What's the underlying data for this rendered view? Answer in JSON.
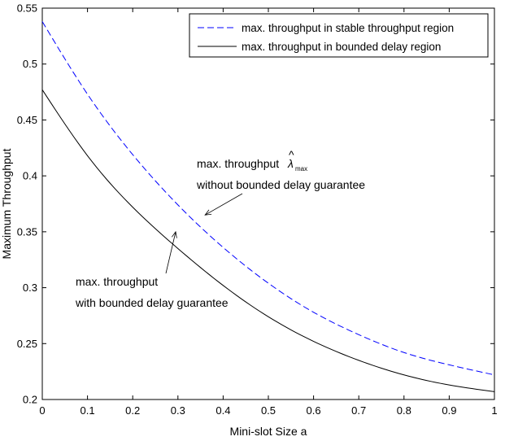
{
  "chart_data": {
    "type": "line",
    "title": "",
    "xlabel": "Mini-slot Size a",
    "ylabel": "Maximum Throughput",
    "xlim": [
      0,
      1
    ],
    "ylim": [
      0.2,
      0.55
    ],
    "xticks": [
      0,
      0.1,
      0.2,
      0.3,
      0.4,
      0.5,
      0.6,
      0.7,
      0.8,
      0.9,
      1
    ],
    "xtick_labels": [
      "0",
      "0.1",
      "0.2",
      "0.3",
      "0.4",
      "0.5",
      "0.6",
      "0.7",
      "0.8",
      "0.9",
      "1"
    ],
    "yticks": [
      0.2,
      0.25,
      0.3,
      0.35,
      0.4,
      0.45,
      0.5,
      0.55
    ],
    "ytick_labels": [
      "0.2",
      "0.25",
      "0.3",
      "0.35",
      "0.4",
      "0.45",
      "0.5",
      "0.55"
    ],
    "grid": false,
    "legend_position": "top-right",
    "x": [
      0,
      0.1,
      0.2,
      0.3,
      0.4,
      0.5,
      0.6,
      0.7,
      0.8,
      0.9,
      1.0
    ],
    "series": [
      {
        "name": "max. throughput in stable throughput region",
        "color": "#0000ff",
        "style": "dashed",
        "values": [
          0.538,
          0.473,
          0.419,
          0.374,
          0.336,
          0.304,
          0.278,
          0.258,
          0.242,
          0.231,
          0.222
        ]
      },
      {
        "name": "max. throughput in bounded delay region",
        "color": "#000000",
        "style": "solid",
        "values": [
          0.477,
          0.418,
          0.372,
          0.335,
          0.302,
          0.274,
          0.252,
          0.235,
          0.222,
          0.213,
          0.207
        ]
      }
    ],
    "annotations": [
      {
        "line1": "max. throughput",
        "symbol": "λ",
        "symbol_subscript": "max",
        "line2": "without bounded delay guarantee",
        "arrow_to": [
          0.36,
          0.365
        ]
      },
      {
        "line1": "max. throughput",
        "line2": "with bounded delay guarantee",
        "arrow_to": [
          0.295,
          0.35
        ]
      }
    ]
  }
}
